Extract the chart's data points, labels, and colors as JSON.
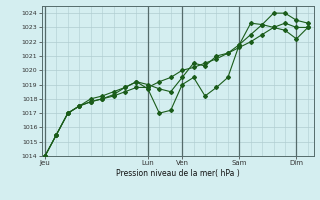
{
  "xlabel": "Pression niveau de la mer( hPa )",
  "ylim": [
    1014,
    1024.5
  ],
  "yticks": [
    1014,
    1015,
    1016,
    1017,
    1018,
    1019,
    1020,
    1021,
    1022,
    1023,
    1024
  ],
  "background_color": "#d4eef0",
  "grid_color": "#b0ccd0",
  "line_color": "#1a5c1a",
  "marker_color": "#1a5c1a",
  "x_day_labels": [
    "Jeu",
    "Lun",
    "Ven",
    "Sam",
    "Dim"
  ],
  "x_day_positions": [
    0,
    9,
    12,
    17,
    22
  ],
  "xlim": [
    -0.3,
    23.5
  ],
  "series1_x": [
    0,
    1,
    2,
    3,
    4,
    5,
    6,
    7,
    8,
    9,
    10,
    11,
    12,
    13,
    14,
    15,
    16,
    17,
    18,
    19,
    20,
    21,
    22,
    23
  ],
  "series1_y": [
    1014.0,
    1015.5,
    1017.0,
    1017.5,
    1017.8,
    1018.0,
    1018.2,
    1018.5,
    1018.8,
    1018.8,
    1019.2,
    1019.5,
    1020.0,
    1020.2,
    1020.5,
    1020.8,
    1021.2,
    1021.6,
    1022.0,
    1022.5,
    1023.0,
    1023.3,
    1023.0,
    1023.0
  ],
  "series2_x": [
    0,
    1,
    2,
    3,
    4,
    5,
    6,
    7,
    8,
    9,
    10,
    11,
    12,
    13,
    14,
    15,
    16,
    17,
    18,
    19,
    20,
    21,
    22,
    23
  ],
  "series2_y": [
    1014.0,
    1015.5,
    1017.0,
    1017.5,
    1018.0,
    1018.2,
    1018.5,
    1018.8,
    1019.2,
    1018.7,
    1017.0,
    1017.2,
    1019.0,
    1019.5,
    1018.2,
    1018.8,
    1019.5,
    1021.8,
    1023.3,
    1023.2,
    1023.0,
    1022.8,
    1022.2,
    1023.0
  ],
  "series3_x": [
    0,
    1,
    2,
    3,
    4,
    5,
    6,
    7,
    8,
    9,
    10,
    11,
    12,
    13,
    14,
    15,
    16,
    17,
    18,
    19,
    20,
    21,
    22,
    23
  ],
  "series3_y": [
    1014.0,
    1015.5,
    1017.0,
    1017.5,
    1017.8,
    1018.0,
    1018.3,
    1018.8,
    1019.2,
    1019.0,
    1018.7,
    1018.5,
    1019.5,
    1020.5,
    1020.3,
    1021.0,
    1021.2,
    1021.8,
    1022.5,
    1023.2,
    1024.0,
    1024.0,
    1023.5,
    1023.3
  ]
}
